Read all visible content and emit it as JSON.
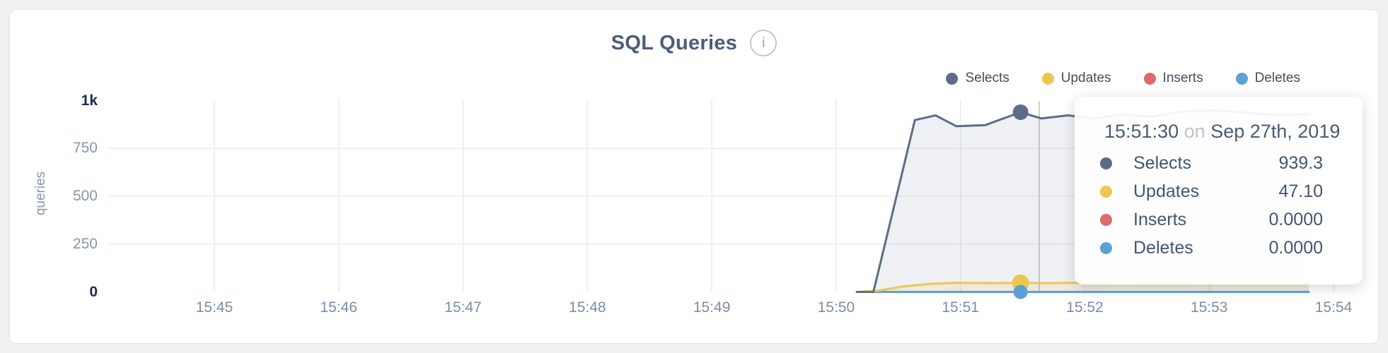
{
  "header": {
    "title": "SQL Queries",
    "info_icon": "i"
  },
  "y_axis_label": "queries",
  "tooltip": {
    "time": "15:51:30",
    "connector": "on",
    "date": "Sep 27th, 2019",
    "rows": [
      {
        "label": "Selects",
        "value": "939.3",
        "color": "#5b6b84"
      },
      {
        "label": "Updates",
        "value": "47.10",
        "color": "#ecc74f"
      },
      {
        "label": "Inserts",
        "value": "0.0000",
        "color": "#e2696a"
      },
      {
        "label": "Deletes",
        "value": "0.0000",
        "color": "#5ba1d7"
      }
    ]
  },
  "chart_data": {
    "type": "area",
    "title": "SQL Queries",
    "xlabel": "",
    "ylabel": "queries",
    "ylim": [
      0,
      1000
    ],
    "grid": true,
    "legend_position": "top-right",
    "y_ticks": [
      {
        "value": 0,
        "label": "0",
        "strong": true
      },
      {
        "value": 250,
        "label": "250",
        "strong": false
      },
      {
        "value": 500,
        "label": "500",
        "strong": false
      },
      {
        "value": 750,
        "label": "750",
        "strong": false
      },
      {
        "value": 1000,
        "label": "1k",
        "strong": true
      }
    ],
    "x_ticks": [
      {
        "label": "15:45",
        "seconds": 0
      },
      {
        "label": "15:46",
        "seconds": 60
      },
      {
        "label": "15:47",
        "seconds": 120
      },
      {
        "label": "15:48",
        "seconds": 180
      },
      {
        "label": "15:49",
        "seconds": 240
      },
      {
        "label": "15:50",
        "seconds": 300
      },
      {
        "label": "15:51",
        "seconds": 360
      },
      {
        "label": "15:52",
        "seconds": 420
      },
      {
        "label": "15:53",
        "seconds": 480
      },
      {
        "label": "15:54",
        "seconds": 540
      }
    ],
    "x_range_seconds": [
      0,
      540
    ],
    "series": [
      {
        "name": "Inserts",
        "color": "#e2696a",
        "fill": null,
        "points": [
          [
            310,
            0
          ],
          [
            528,
            0
          ]
        ]
      },
      {
        "name": "Deletes",
        "color": "#5ba1d7",
        "fill": null,
        "points": [
          [
            310,
            0
          ],
          [
            528,
            0
          ]
        ]
      },
      {
        "name": "Updates",
        "color": "#ecc74f",
        "fill": "rgba(236,199,79,0.13)",
        "points": [
          [
            310,
            0
          ],
          [
            320,
            6
          ],
          [
            332,
            28
          ],
          [
            345,
            42
          ],
          [
            358,
            48
          ],
          [
            372,
            46
          ],
          [
            389,
            47.1
          ],
          [
            402,
            46
          ],
          [
            418,
            48
          ],
          [
            440,
            47
          ],
          [
            462,
            48
          ],
          [
            485,
            46
          ],
          [
            508,
            47
          ],
          [
            528,
            47
          ]
        ]
      },
      {
        "name": "Selects",
        "color": "#5d6c87",
        "fill": "rgba(93,108,135,0.10)",
        "points": [
          [
            310,
            0
          ],
          [
            318,
            0
          ],
          [
            338,
            898
          ],
          [
            348,
            923
          ],
          [
            358,
            866
          ],
          [
            372,
            872
          ],
          [
            389,
            939.3
          ],
          [
            399,
            907
          ],
          [
            412,
            923
          ],
          [
            424,
            905
          ],
          [
            438,
            928
          ],
          [
            452,
            915
          ],
          [
            466,
            942
          ],
          [
            482,
            950
          ],
          [
            497,
            938
          ],
          [
            512,
            925
          ],
          [
            528,
            928
          ]
        ]
      }
    ],
    "legend_order": [
      "Selects",
      "Updates",
      "Inserts",
      "Deletes"
    ],
    "hover": {
      "time": "15:51:30",
      "seconds": 389,
      "crosshair_seconds": 398,
      "points": [
        {
          "series": "Selects",
          "value": 939.3,
          "radius": 11
        },
        {
          "series": "Updates",
          "value": 47.1,
          "radius": 12
        },
        {
          "series": "Deletes",
          "value": 0,
          "radius": 10
        }
      ]
    }
  }
}
